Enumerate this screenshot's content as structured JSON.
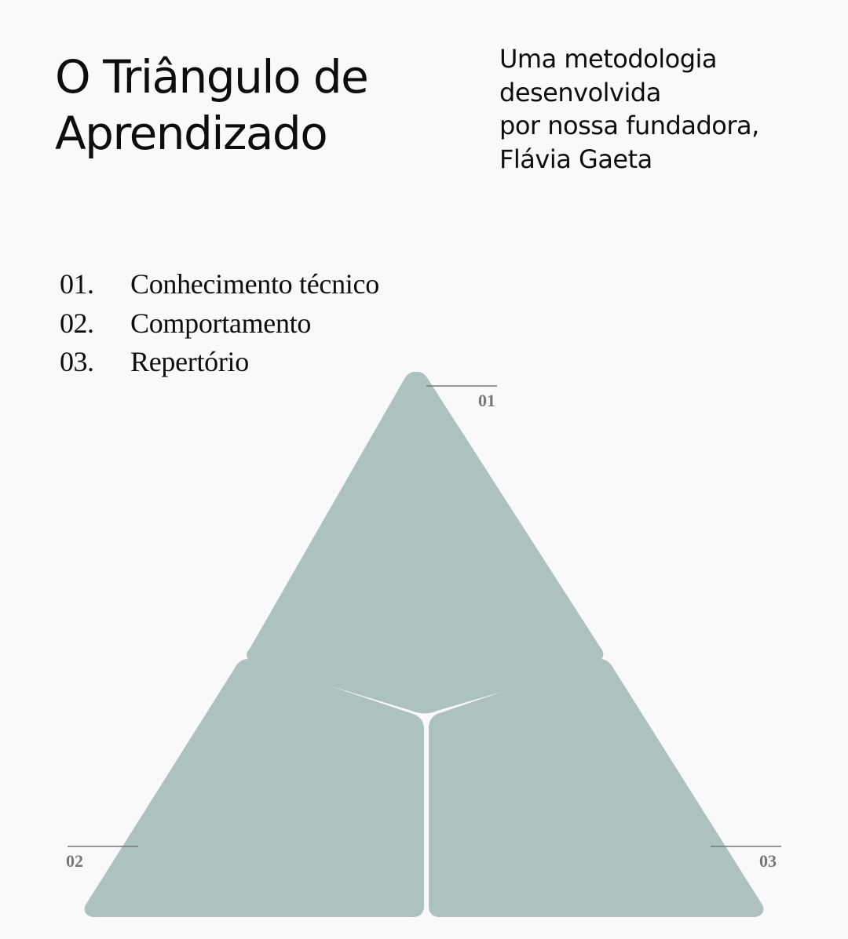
{
  "header": {
    "title_lines": [
      "O Triângulo de",
      "Aprendizado"
    ],
    "subtitle_lines": [
      "Uma metodologia",
      "desenvolvida",
      "por nossa fundadora,",
      "Flávia Gaeta"
    ]
  },
  "legend": {
    "items": [
      {
        "number": "01.",
        "label": "Conhecimento técnico"
      },
      {
        "number": "02.",
        "label": "Comportamento"
      },
      {
        "number": "03.",
        "label": "Repertório"
      }
    ]
  },
  "diagram": {
    "segment_color": "#adc1c1",
    "marker_color": "#777777",
    "markers": {
      "top": "01",
      "left": "02",
      "right": "03"
    }
  }
}
